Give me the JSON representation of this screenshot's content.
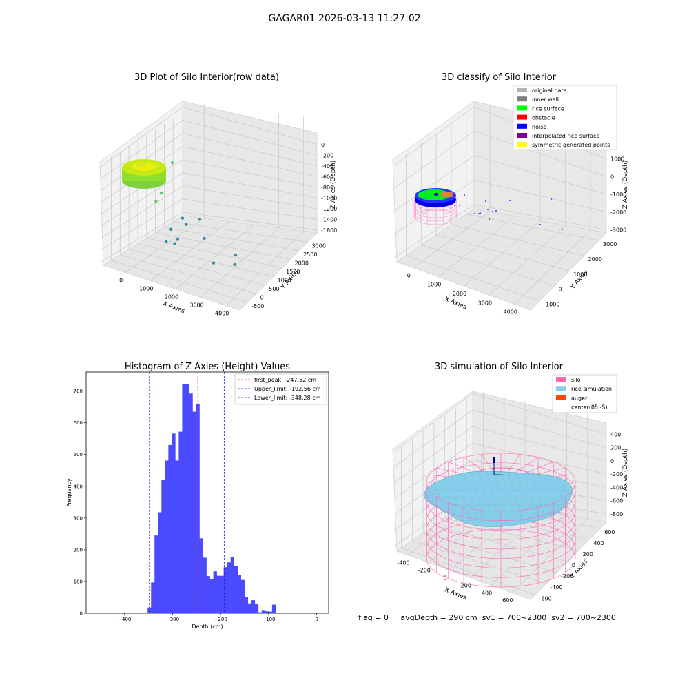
{
  "suptitle": "GAGAR01 2026-03-13 11:27:02",
  "colors": {
    "pane_left": "#f2f2f2",
    "pane_right": "#e8e8e8",
    "pane_floor": "#e6e6e6",
    "grid": "#cccccc",
    "hist_bar": "#4a4aff",
    "peak_line": "#ff3333",
    "limit_line": "#1a1acc",
    "silo_mesh": "#ff69b4",
    "rice_sim": "#87ceeb",
    "rice_surface": "#00ff00",
    "noise": "#0000ff",
    "auger": "#000080"
  },
  "chart_data": [
    {
      "type": "scatter",
      "projection": "3d",
      "title": "3D Plot of Silo Interior(row data)",
      "xlabel": "X Axies",
      "ylabel": "Y Axies",
      "zlabel": "Z Axies (Depth)",
      "xticks": [
        "0",
        "1000",
        "2000",
        "3000",
        "4000"
      ],
      "yticks": [
        "-500",
        "0",
        "500",
        "1000",
        "1500",
        "2000",
        "2500",
        "3000"
      ],
      "zticks": [
        "0",
        "-200",
        "-400",
        "-600",
        "-800",
        "-1000",
        "-1200",
        "-1400",
        "-1600"
      ],
      "outlier_points": [
        {
          "x": 600,
          "y": 1400,
          "z": -300
        },
        {
          "x": 550,
          "y": 900,
          "z": -700
        },
        {
          "x": 500,
          "y": 700,
          "z": -800
        },
        {
          "x": 1300,
          "y": 900,
          "z": -1000
        },
        {
          "x": 1500,
          "y": 800,
          "z": -1050
        },
        {
          "x": 1100,
          "y": 600,
          "z": -1150
        },
        {
          "x": 1400,
          "y": 500,
          "z": -1250
        },
        {
          "x": 1350,
          "y": 420,
          "z": -1310
        },
        {
          "x": 2200,
          "y": 700,
          "z": -1150
        },
        {
          "x": 3100,
          "y": 1000,
          "z": -1350
        },
        {
          "x": 2800,
          "y": 300,
          "z": -1380
        },
        {
          "x": 3200,
          "y": 800,
          "z": -1450
        },
        {
          "x": 1100,
          "y": 350,
          "z": -1300
        },
        {
          "x": 1700,
          "y": 1200,
          "z": -1020
        }
      ]
    },
    {
      "type": "scatter",
      "projection": "3d",
      "title": "3D classify of Silo Interior",
      "xlabel": "X Axies",
      "ylabel": "Y Axies",
      "zlabel": "Z Axies (Depth)",
      "xticks": [
        "0",
        "1000",
        "2000",
        "3000",
        "4000"
      ],
      "yticks": [
        "-1000",
        "0",
        "1000",
        "2000",
        "3000"
      ],
      "zticks": [
        "1000",
        "0",
        "-1000",
        "-2000",
        "-3000"
      ],
      "legend": [
        {
          "label": "original data",
          "color": "#b3b3b3"
        },
        {
          "label": "inner wall",
          "color": "#808080"
        },
        {
          "label": "rice surface",
          "color": "#00ff00"
        },
        {
          "label": "obstacle",
          "color": "#ff0000"
        },
        {
          "label": "noise",
          "color": "#0000ff"
        },
        {
          "label": "interpolated rice surface",
          "color": "#800080"
        },
        {
          "label": "symmetric generated points",
          "color": "#ffff00"
        }
      ],
      "legend_loc": "upper right"
    },
    {
      "type": "bar",
      "title": "Histogram of Z-Axies (Height) Values",
      "xlabel": "Depth (cm)",
      "ylabel": "Frequency",
      "xlim": [
        -480,
        25
      ],
      "ylim": [
        0,
        760
      ],
      "xticks": [
        -400,
        -300,
        -200,
        -100,
        0
      ],
      "yticks": [
        0,
        100,
        200,
        300,
        400,
        500,
        600,
        700
      ],
      "bin_start": -352,
      "bin_width": 7.2,
      "counts": [
        18,
        97,
        245,
        318,
        420,
        481,
        530,
        566,
        481,
        572,
        723,
        722,
        692,
        635,
        658,
        236,
        175,
        117,
        108,
        132,
        118,
        118,
        145,
        160,
        177,
        148,
        121,
        105,
        50,
        31,
        41,
        30,
        3,
        8,
        6,
        5,
        27
      ],
      "vlines": [
        {
          "label": "first_peak: -247.52 cm",
          "x": -247.52,
          "color": "#ff3333"
        },
        {
          "label": "Upper_limit: -192.56 cm",
          "x": -192.56,
          "color": "#1a1acc"
        },
        {
          "label": "Lower_limit: -348.28 cm",
          "x": -348.28,
          "color": "#1a1acc"
        }
      ],
      "legend_loc": "upper right"
    },
    {
      "type": "surface",
      "projection": "3d",
      "title": "3D simulation of Silo Interior",
      "xlabel": "X Axies",
      "ylabel": "Y Axies",
      "zlabel": "Z Axies (Depth)",
      "xticks": [
        "-400",
        "-200",
        "0",
        "200",
        "400",
        "600"
      ],
      "yticks": [
        "-600",
        "-400",
        "-200",
        "0",
        "200",
        "400",
        "600"
      ],
      "zticks": [
        "400",
        "200",
        "0",
        "-200",
        "-400",
        "-600",
        "-800"
      ],
      "legend": [
        {
          "label": "silo",
          "color": "#ff69b4"
        },
        {
          "label": "rice simulation",
          "color": "#87ceeb"
        },
        {
          "label": "auger",
          "color": "#ff4500"
        },
        {
          "label": "center(85,-5)",
          "color": "#ffffff"
        }
      ],
      "legend_loc": "upper right"
    }
  ],
  "status_line": "flag = 0     avgDepth = 290 cm  sv1 = 700~2300  sv2 = 700~2300"
}
